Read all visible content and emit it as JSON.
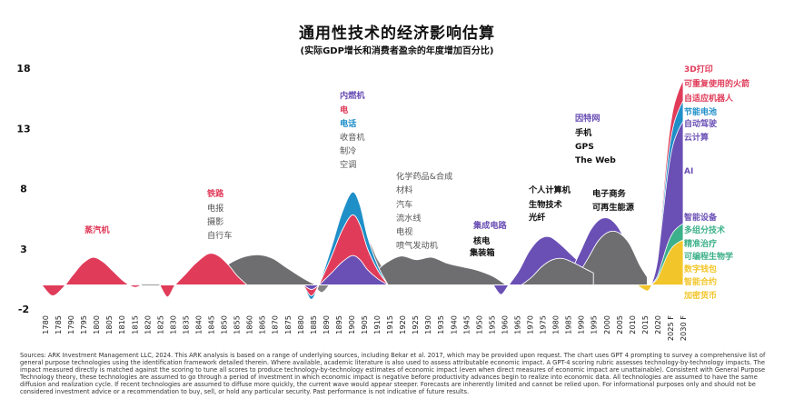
{
  "chart_data": {
    "type": "area",
    "title": "通用性技术的经济影响估算",
    "subtitle": "(实际GDP增长和消费者盈余的年度增加百分比)",
    "ylim": [
      -2,
      18
    ],
    "yticks": [
      "18",
      "13",
      "8",
      "3",
      "-2"
    ],
    "ytick_values": [
      18,
      13,
      8,
      3,
      -2
    ],
    "x_tick_labels": [
      "1780",
      "1785",
      "1790",
      "1795",
      "1800",
      "1805",
      "1810",
      "1815",
      "1820",
      "1825",
      "1830",
      "1835",
      "1840",
      "1845",
      "1850",
      "1855",
      "1860",
      "1865",
      "1870",
      "1875",
      "1880",
      "1885",
      "1890",
      "1895",
      "1900",
      "1905",
      "1910",
      "1915",
      "1920",
      "1925",
      "1930",
      "1935",
      "1940",
      "1945",
      "1950",
      "1955",
      "1960",
      "1965",
      "1970",
      "1975",
      "1980",
      "1985",
      "1990",
      "1995",
      "2000",
      "2005",
      "2010",
      "2015",
      "2020",
      "2025 F",
      "2030 F"
    ],
    "series_colors": {
      "red": "#e03c5a",
      "blue": "#1f8fc8",
      "purple": "#6a4fb5",
      "gray": "#6e6e70",
      "green": "#3cb08a",
      "yellow": "#f2c62a"
    },
    "series": [
      {
        "name": "蒸汽机",
        "color": "#e03c5a",
        "x": [
          1780,
          1784,
          1788,
          1792,
          1796,
          1800,
          1804,
          1808,
          1812,
          1816,
          1819
        ],
        "values": [
          0,
          -0.9,
          -0.3,
          0.8,
          1.8,
          2.3,
          1.9,
          1.1,
          0.3,
          -0.2,
          0
        ]
      },
      {
        "name": "铁路",
        "color": "#e03c5a",
        "x": [
          1826,
          1829,
          1832,
          1836,
          1840,
          1845,
          1849,
          1853,
          1856,
          1860
        ],
        "values": [
          0,
          -1.0,
          0,
          0.9,
          1.8,
          2.6,
          2.4,
          1.6,
          0.8,
          0
        ]
      },
      {
        "name": "电报 / 摄影 / 自行车",
        "color": "#6e6e70",
        "x": [
          1836,
          1845,
          1850,
          1855,
          1860,
          1865,
          1870,
          1875,
          1880,
          1884,
          1887
        ],
        "values": [
          0,
          0.4,
          1.3,
          2.0,
          2.4,
          2.5,
          2.2,
          1.5,
          0.8,
          0.3,
          0
        ]
      },
      {
        "name": "内燃机 / 电 / 电话",
        "color": "#e03c5a",
        "x": [
          1882,
          1885,
          1888,
          1893,
          1897,
          1901,
          1904,
          1907,
          1911,
          1915
        ],
        "values": [
          0,
          -0.9,
          0,
          2.4,
          4.5,
          5.8,
          5.0,
          3.0,
          1.2,
          0
        ]
      },
      {
        "name": "化学药品&合成材料 / 汽车 / 流水线 / 电视 / 喷气发动机",
        "color": "#6e6e70",
        "x": [
          1900,
          1908,
          1914,
          1920,
          1926,
          1932,
          1938,
          1944,
          1950,
          1956,
          1961
        ],
        "values": [
          0,
          0.8,
          1.8,
          2.4,
          2.1,
          2.3,
          1.8,
          1.5,
          1.2,
          0.7,
          0
        ]
      },
      {
        "name": "集成电路 / 核电 / 集装箱",
        "color": "#6a4fb5",
        "x": [
          1956,
          1959,
          1962,
          1965,
          1968
        ],
        "values": [
          0,
          -0.8,
          0,
          0.8,
          0.3
        ]
      },
      {
        "name": "个人计算机 / 生物技术 / 光纤",
        "color": "#6a4fb5",
        "x": [
          1962,
          1966,
          1970,
          1974,
          1978,
          1982,
          1986,
          1990
        ],
        "values": [
          0,
          1.2,
          2.8,
          3.8,
          4.0,
          3.4,
          2.6,
          1.8
        ]
      },
      {
        "name": "因特网 / 手机 / GPS / The Web / 电子商务 / 可再生能源",
        "color": "#6a4fb5",
        "x": [
          1986,
          1990,
          1994,
          1998,
          2002,
          2006,
          2010,
          2013
        ],
        "values": [
          1.0,
          2.8,
          4.6,
          5.5,
          5.4,
          4.3,
          2.1,
          0.8
        ]
      },
      {
        "name": "3D打印 / 可重复使用的火箭 / 自适应机器人 / 节能电池 / 自动驾驶 / 云计算 / AI / 智能设备 / 多组分技术 / 精准治疗 / 可编程生物学 / 数字钱包 / 智能合约 / 加密货币",
        "color": "#6a4fb5",
        "x": [
          2012,
          2016,
          2018,
          2020,
          2022,
          2024,
          2026,
          2028,
          2030
        ],
        "values": [
          0,
          -0.5,
          0.3,
          2.5,
          7.0,
          11.5,
          14.5,
          16.0,
          17.0
        ]
      }
    ],
    "annotations": [
      {
        "text": "蒸汽机",
        "color": "#e03c5a"
      },
      {
        "text": "铁路",
        "color": "#e03c5a"
      },
      {
        "text": "电报",
        "color": "#555555"
      },
      {
        "text": "摄影",
        "color": "#555555"
      },
      {
        "text": "自行车",
        "color": "#555555"
      },
      {
        "text": "内燃机",
        "color": "#6a4fb5"
      },
      {
        "text": "电",
        "color": "#e03c5a"
      },
      {
        "text": "电话",
        "color": "#1f8fc8"
      },
      {
        "text": "收音机",
        "color": "#555555"
      },
      {
        "text": "制冷",
        "color": "#555555"
      },
      {
        "text": "空调",
        "color": "#555555"
      },
      {
        "text": "化学药品&合成",
        "color": "#555555"
      },
      {
        "text": "材料",
        "color": "#555555"
      },
      {
        "text": "汽车",
        "color": "#555555"
      },
      {
        "text": "流水线",
        "color": "#555555"
      },
      {
        "text": "电视",
        "color": "#555555"
      },
      {
        "text": "喷气发动机",
        "color": "#555555"
      },
      {
        "text": "集成电路",
        "color": "#6a4fb5"
      },
      {
        "text": "核电",
        "color": "#111111"
      },
      {
        "text": "集装箱",
        "color": "#111111"
      },
      {
        "text": "个人计算机",
        "color": "#111111"
      },
      {
        "text": "生物技术",
        "color": "#111111"
      },
      {
        "text": "光纤",
        "color": "#111111"
      },
      {
        "text": "因特网",
        "color": "#6a4fb5"
      },
      {
        "text": "手机",
        "color": "#111111"
      },
      {
        "text": "GPS",
        "color": "#111111"
      },
      {
        "text": "The Web",
        "color": "#111111"
      },
      {
        "text": "电子商务",
        "color": "#111111"
      },
      {
        "text": "可再生能源",
        "color": "#111111"
      }
    ],
    "legend": [
      {
        "text": "3D打印",
        "color": "#e03c5a"
      },
      {
        "text": "可重复使用的火箭",
        "color": "#e03c5a"
      },
      {
        "text": "自适应机器人",
        "color": "#e03c5a"
      },
      {
        "text": "节能电池",
        "color": "#1f8fc8"
      },
      {
        "text": "自动驾驶",
        "color": "#6a4fb5"
      },
      {
        "text": "云计算",
        "color": "#6a4fb5"
      },
      {
        "text": "AI",
        "color": "#6a4fb5"
      },
      {
        "text": "智能设备",
        "color": "#6a4fb5"
      },
      {
        "text": "多组分技术",
        "color": "#3cb08a"
      },
      {
        "text": "精准治疗",
        "color": "#3cb08a"
      },
      {
        "text": "可编程生物学",
        "color": "#3cb08a"
      },
      {
        "text": "数字钱包",
        "color": "#f2c62a"
      },
      {
        "text": "智能合约",
        "color": "#f2c62a"
      },
      {
        "text": "加密货币",
        "color": "#f2c62a"
      }
    ],
    "grid": false,
    "legend_position": "right"
  },
  "source_text": "Sources: ARK Investment Management LLC, 2024. This ARK analysis is based on a range of underlying sources, including Bekar et al. 2017, which may be provided upon request. The chart uses GPT 4 prompting to survey a comprehensive list of general purpose technologies using the identification framework detailed therein. Where available, academic literature is also used to assess attributable economic impact. A GPT-4 scoring rubric assesses technology-by-technology impacts. The impact measured directly is matched against the scoring to tune all scores to produce technology-by-technology estimates of economic impact (even when direct measures of economic impact are unattainable). Consistent with General Purpose Technology theory, these technologies are assumed to go through a period of investment in which economic impact is negative before productivity advances begin to realize into economic data. All technologies are assumed to have the same diffusion and realization cycle. If recent technologies are assumed to diffuse more quickly, the current wave would appear steeper. Forecasts are inherently limited and cannot be relied upon. For informational purposes only and should not be considered investment advice or a recommendation to buy, sell, or hold any particular security. Past performance is not indicative of future results."
}
